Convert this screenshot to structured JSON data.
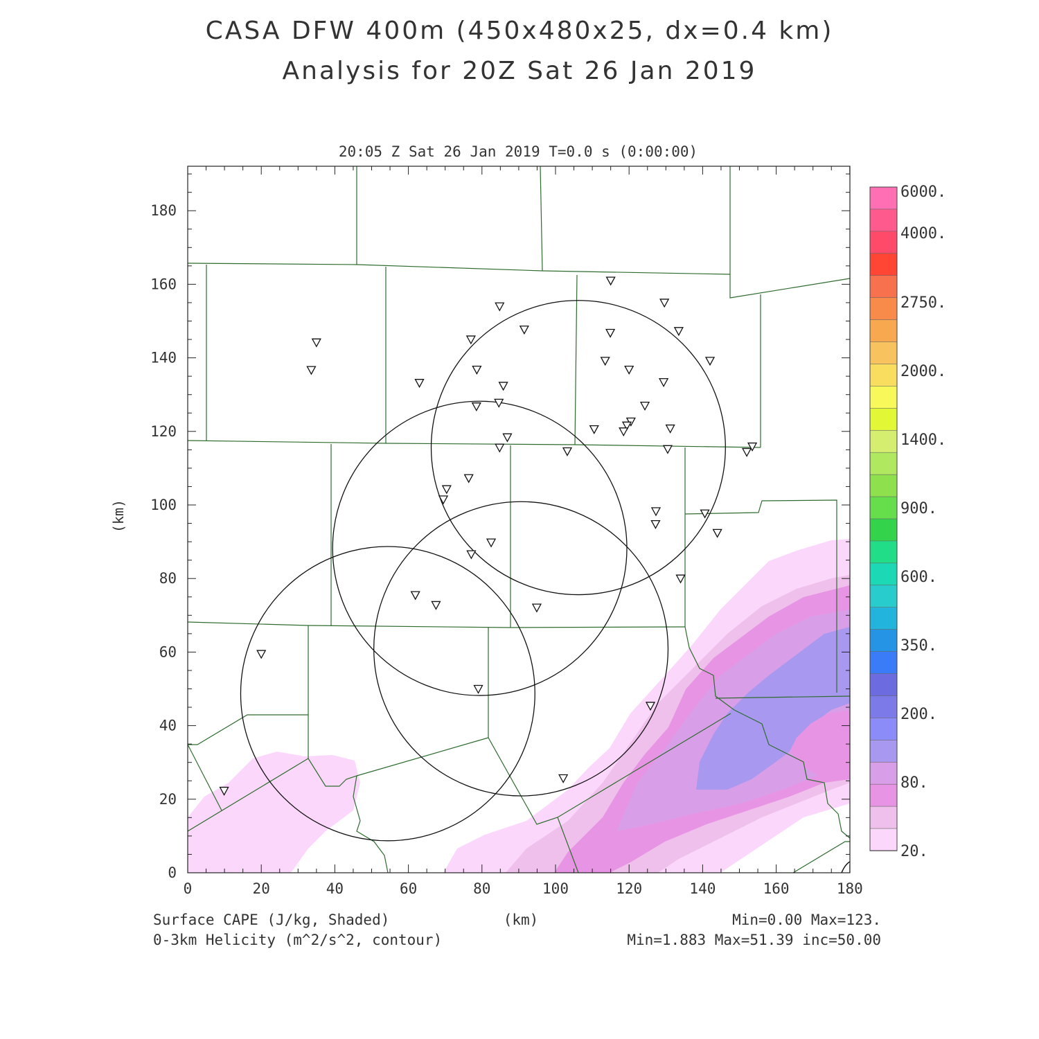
{
  "title": {
    "line1": "CASA DFW 400m (450x480x25, dx=0.4 km)",
    "line2": "Analysis for 20Z Sat 26 Jan 2019"
  },
  "plot": {
    "time_label": "20:05 Z Sat 26 Jan 2019    T=0.0 s (0:00:00)",
    "x_unit": "(km)",
    "y_unit": "(km)",
    "x_ticks": [
      "0",
      "20",
      "40",
      "60",
      "80",
      "100",
      "120",
      "140",
      "160",
      "180"
    ],
    "y_ticks": [
      "0",
      "20",
      "40",
      "60",
      "80",
      "100",
      "120",
      "140",
      "160",
      "180"
    ]
  },
  "colorbar": {
    "labels": [
      "6000.",
      "4000.",
      "2750.",
      "2000.",
      "1400.",
      "900.",
      "600.",
      "350.",
      "200.",
      "80.",
      "20."
    ],
    "colors": [
      "#ff6fb4",
      "#ff5a8e",
      "#ff4a6a",
      "#ff4533",
      "#f8714f",
      "#f88b4a",
      "#f8a84f",
      "#f8c25f",
      "#f8dd5f",
      "#f8f85a",
      "#e2f836",
      "#d6ee70",
      "#b0e860",
      "#8ee04c",
      "#66de4c",
      "#33d44c",
      "#22dd88",
      "#1cd8b4",
      "#28cccc",
      "#22b4dc",
      "#2694e4",
      "#3a7cf8",
      "#6c6ce0",
      "#7c7ae8",
      "#8c8cf8",
      "#a898f0",
      "#d89ee8",
      "#e894e4",
      "#f0c0ec",
      "#fbd8fb"
    ]
  },
  "legend": {
    "shaded_name": "Surface CAPE (J/kg, Shaded)",
    "shaded_stats": "Min=0.00 Max=123.",
    "contour_name": "0-3km Helicity (m^2/s^2, contour)",
    "contour_stats": "Min=1.883 Max=51.39 inc=50.00",
    "x_unit": "(km)"
  },
  "stations_km": [
    [
      115,
      161
    ],
    [
      129.6,
      155
    ],
    [
      84.8,
      154
    ],
    [
      91.5,
      147.7
    ],
    [
      77,
      145
    ],
    [
      114.9,
      146.8
    ],
    [
      133.5,
      147.3
    ],
    [
      35,
      144.2
    ],
    [
      113.5,
      139.2
    ],
    [
      142,
      139.2
    ],
    [
      78.6,
      136.8
    ],
    [
      33.6,
      136.7
    ],
    [
      120,
      136.8
    ],
    [
      63,
      133.2
    ],
    [
      129.4,
      133.4
    ],
    [
      85.8,
      132.4
    ],
    [
      84.6,
      127.8
    ],
    [
      78.5,
      126.8
    ],
    [
      124.3,
      127
    ],
    [
      120.5,
      122.7
    ],
    [
      119.4,
      121.6
    ],
    [
      110.5,
      120.6
    ],
    [
      131.2,
      120.8
    ],
    [
      118.5,
      120
    ],
    [
      86.9,
      118.4
    ],
    [
      84.8,
      115.6
    ],
    [
      103.2,
      114.6
    ],
    [
      130.5,
      115.2
    ],
    [
      153.5,
      115.9
    ],
    [
      152,
      114.4
    ],
    [
      70.4,
      104.3
    ],
    [
      76.4,
      107.3
    ],
    [
      69.5,
      101.5
    ],
    [
      127.3,
      98.3
    ],
    [
      140.6,
      97.7
    ],
    [
      127.2,
      94.8
    ],
    [
      144,
      92.4
    ],
    [
      82.5,
      89.8
    ],
    [
      77.1,
      86.6
    ],
    [
      134,
      80
    ],
    [
      61.9,
      75.5
    ],
    [
      67.5,
      72.8
    ],
    [
      94.9,
      72.1
    ],
    [
      20,
      59.5
    ],
    [
      79,
      50
    ],
    [
      125.8,
      45.4
    ],
    [
      102.1,
      25.7
    ],
    [
      9.9,
      22.3
    ]
  ],
  "radar_rings_km": [
    {
      "cx": 106.2,
      "cy": 115.6,
      "r": 40.0
    },
    {
      "cx": 79.4,
      "cy": 88.2,
      "r": 40.0
    },
    {
      "cx": 90.6,
      "cy": 60.9,
      "r": 40.0
    },
    {
      "cx": 54.4,
      "cy": 48.7,
      "r": 40.0
    }
  ]
}
